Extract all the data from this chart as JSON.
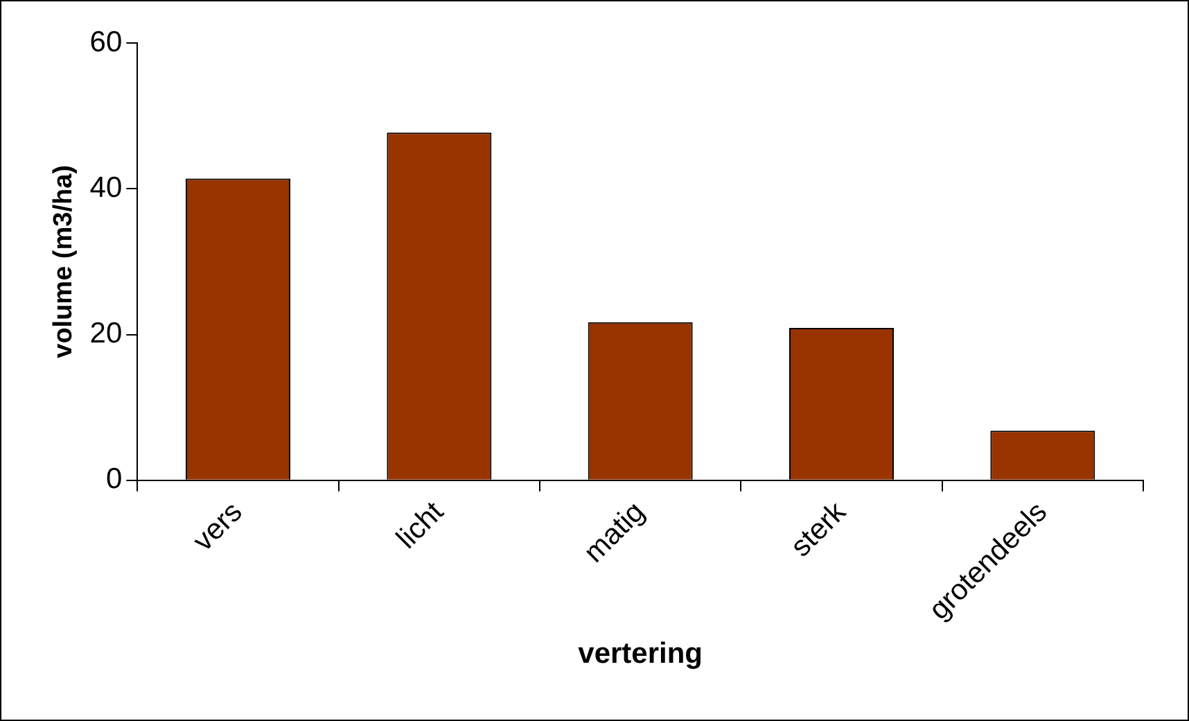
{
  "chart_data": {
    "type": "bar",
    "xlabel": "vertering",
    "ylabel": "volume (m3/ha)",
    "categories": [
      "vers",
      "licht",
      "matig",
      "sterk",
      "grotendeels"
    ],
    "values": [
      41.4,
      47.7,
      21.7,
      20.9,
      6.8
    ],
    "color": "#993300",
    "ylim": [
      0,
      60
    ],
    "yticks": [
      0,
      20,
      40,
      60
    ],
    "grid": false,
    "legend": false
  }
}
